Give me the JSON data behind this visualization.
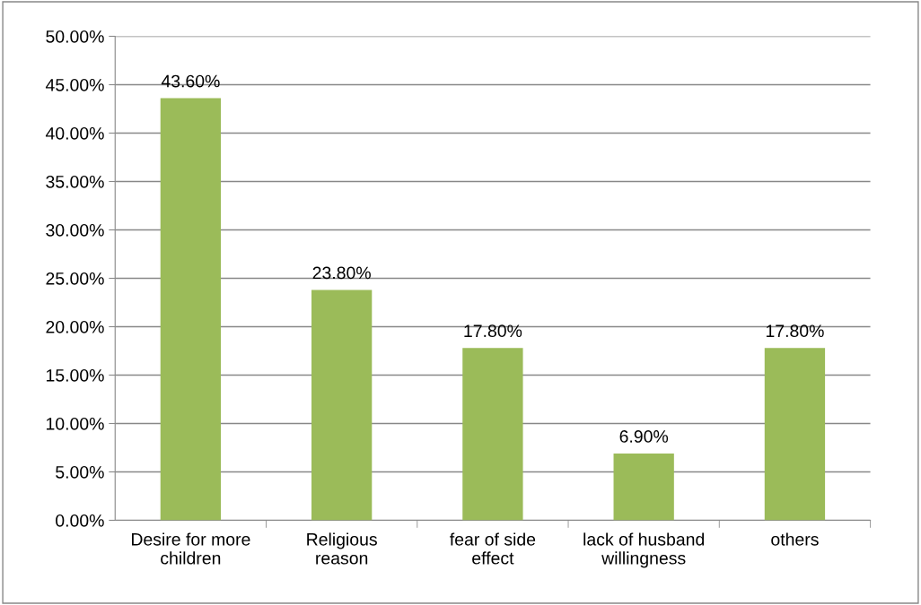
{
  "chart_data": {
    "type": "bar",
    "categories": [
      "Desire for more\nchildren",
      "Religious\nreason",
      "fear of side\neffect",
      "lack of husband\nwillingness",
      "others"
    ],
    "values": [
      43.6,
      23.8,
      17.8,
      6.9,
      17.8
    ],
    "value_labels": [
      "43.60%",
      "23.80%",
      "17.80%",
      "6.90%",
      "17.80%"
    ],
    "color": "#9bbb59",
    "ylim": [
      0,
      50
    ],
    "yticks": [
      {
        "value": 0,
        "label": "0.00%"
      },
      {
        "value": 5,
        "label": "5.00%"
      },
      {
        "value": 10,
        "label": "10.00%"
      },
      {
        "value": 15,
        "label": "15.00%"
      },
      {
        "value": 20,
        "label": "20.00%"
      },
      {
        "value": 25,
        "label": "25.00%"
      },
      {
        "value": 30,
        "label": "30.00%"
      },
      {
        "value": 35,
        "label": "35.00%"
      },
      {
        "value": 40,
        "label": "40.00%"
      },
      {
        "value": 45,
        "label": "45.00%"
      },
      {
        "value": 50,
        "label": "50.00%"
      }
    ],
    "grid": "y",
    "legend": false
  }
}
